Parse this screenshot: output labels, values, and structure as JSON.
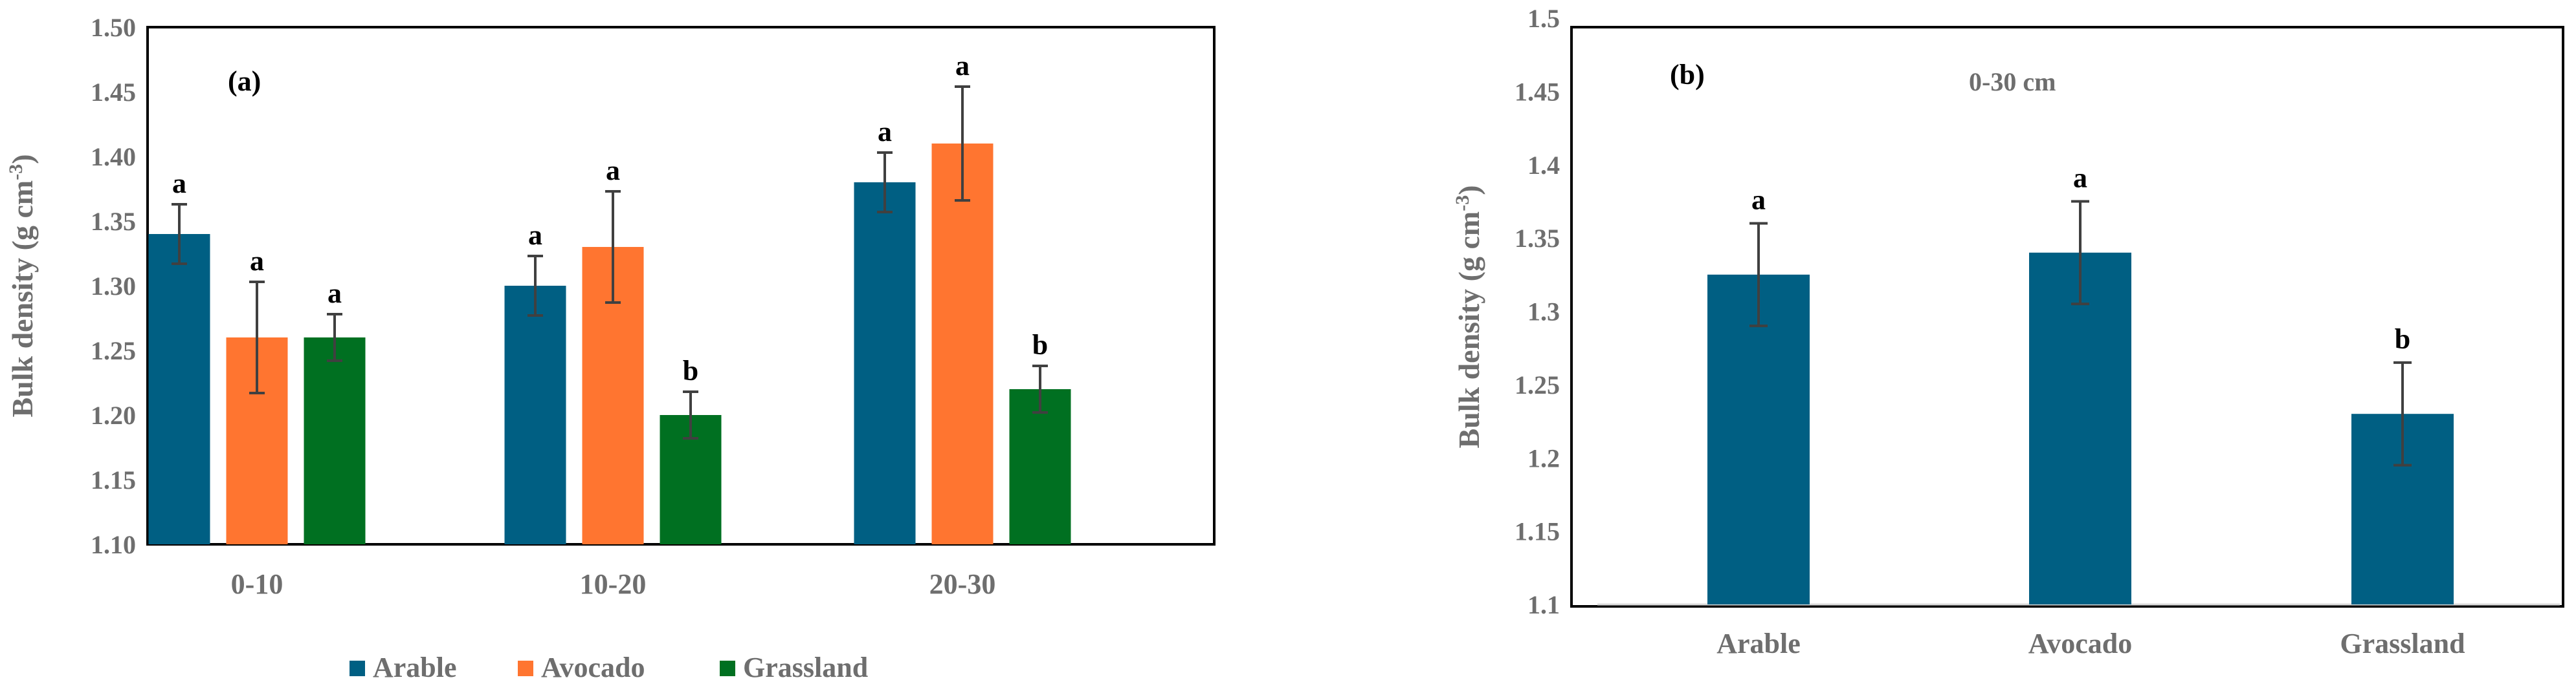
{
  "colors": {
    "arable": "#005f83",
    "avocado": "#ff7530",
    "grassland": "#007021",
    "error_bar": "#404040",
    "axis_text": "#6e6e6e",
    "frame": "#000000"
  },
  "chart_data": [
    {
      "type": "bar",
      "panel_label": "(a)",
      "title": "",
      "xlabel": "",
      "ylabel_main": "Bulk density (g cm",
      "ylabel_sup": "-3",
      "ylabel_close": ")",
      "ylim": [
        1.1,
        1.5
      ],
      "yticks": [
        "1.10",
        "1.15",
        "1.20",
        "1.25",
        "1.30",
        "1.35",
        "1.40",
        "1.45",
        "1.50"
      ],
      "categories": [
        "0-10",
        "10-20",
        "20-30"
      ],
      "legend_position": "bottom",
      "series": [
        {
          "name": "Arable",
          "color_key": "arable",
          "values": [
            1.34,
            1.3,
            1.38
          ],
          "errors": [
            0.023,
            0.023,
            0.023
          ],
          "letters": [
            "a",
            "a",
            "a"
          ]
        },
        {
          "name": "Avocado",
          "color_key": "avocado",
          "values": [
            1.26,
            1.33,
            1.41
          ],
          "errors": [
            0.043,
            0.043,
            0.044
          ],
          "letters": [
            "a",
            "a",
            "a"
          ]
        },
        {
          "name": "Grassland",
          "color_key": "grassland",
          "values": [
            1.26,
            1.2,
            1.22
          ],
          "errors": [
            0.018,
            0.018,
            0.018
          ],
          "letters": [
            "a",
            "b",
            "b"
          ]
        }
      ]
    },
    {
      "type": "bar",
      "panel_label": "(b)",
      "subtitle": "0-30 cm",
      "title": "",
      "xlabel": "",
      "ylabel_main": "Bulk density (g cm",
      "ylabel_sup": "-3",
      "ylabel_close": ")",
      "ylim": [
        1.1,
        1.5
      ],
      "yticks": [
        "1.1",
        "1.15",
        "1.2",
        "1.25",
        "1.3",
        "1.35",
        "1.4",
        "1.45",
        "1.5"
      ],
      "categories": [
        "Arable",
        "Avocado",
        "Grassland"
      ],
      "series": [
        {
          "name": "Bulk density",
          "color_key": "arable",
          "values": [
            1.325,
            1.34,
            1.23
          ],
          "errors": [
            0.035,
            0.035,
            0.035
          ],
          "letters": [
            "a",
            "a",
            "b"
          ]
        }
      ]
    }
  ]
}
